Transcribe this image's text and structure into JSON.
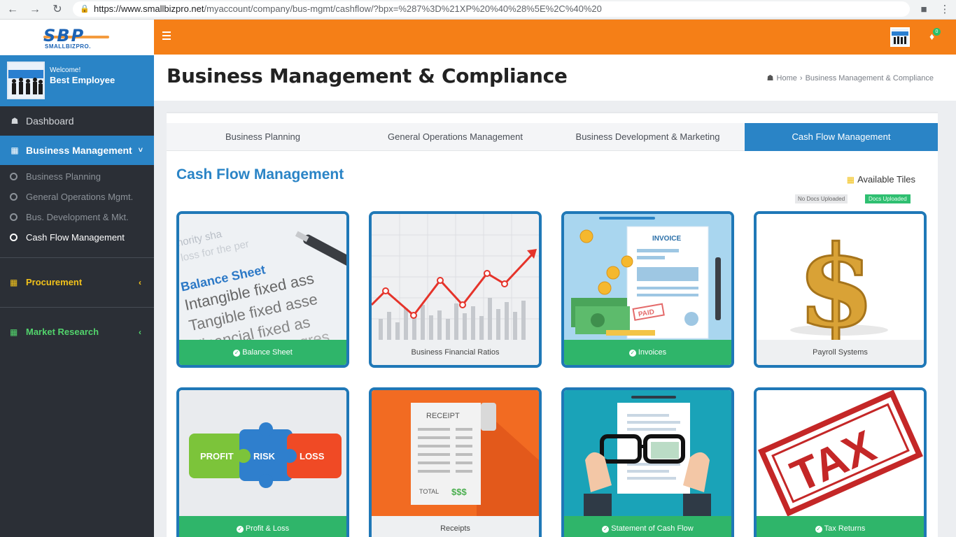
{
  "browser": {
    "url_host": "https://www.smallbizpro.net",
    "url_path": "/myaccount/company/bus-mgmt/cashflow/?bpx=%287%3D%21XP%20%40%28%5E%2C%40%20"
  },
  "logo": {
    "mark": "SBP",
    "subtext": "SMALLBIZPRO."
  },
  "user": {
    "welcome": "Welcome!",
    "name": "Best Employee"
  },
  "sidebar": {
    "dashboard": "Dashboard",
    "business_management": "Business Management",
    "sub_items": [
      {
        "label": "Business Planning"
      },
      {
        "label": "General Operations Mgmt."
      },
      {
        "label": "Bus. Development & Mkt."
      },
      {
        "label": "Cash Flow Management"
      }
    ],
    "procurement": "Procurement",
    "market_research": "Market Research"
  },
  "header": {
    "title": "Business Management & Compliance",
    "breadcrumb_home": "Home",
    "breadcrumb_current": "Business Management & Compliance"
  },
  "tabs": [
    {
      "label": "Business Planning"
    },
    {
      "label": "General Operations Management"
    },
    {
      "label": "Business Development & Marketing"
    },
    {
      "label": "Cash Flow Management",
      "active": true
    }
  ],
  "section": {
    "title": "Cash Flow Management",
    "available_tiles": "Available Tiles",
    "legend_no_docs": "No Docs Uploaded",
    "legend_docs": "Docs Uploaded"
  },
  "tiles": [
    {
      "label": "Balance Sheet",
      "uploaded": true
    },
    {
      "label": "Business Financial Ratios",
      "uploaded": false
    },
    {
      "label": "Invoices",
      "uploaded": true
    },
    {
      "label": "Payroll Systems",
      "uploaded": false
    },
    {
      "label": "Profit & Loss",
      "uploaded": true
    },
    {
      "label": "Receipts",
      "uploaded": false
    },
    {
      "label": "Statement of Cash Flow",
      "uploaded": true
    },
    {
      "label": "Tax Returns",
      "uploaded": true
    }
  ],
  "tile_art": {
    "balance_sheet": [
      "minority sha",
      "et loss for the per",
      "Balance Sheet",
      "Intangible fixed ass",
      "Tangible fixed asse",
      "Financial fixed as",
      "progres"
    ],
    "invoice": [
      "INVOICE",
      "PAID"
    ],
    "puzzle": [
      "PROFIT",
      "RISK",
      "LOSS"
    ],
    "receipt": [
      "RECEIPT",
      "TOTAL",
      "$$$"
    ],
    "tax": "TAX"
  },
  "colors": {
    "primary": "#2a84c6",
    "topbar": "#f57f17",
    "sidebar": "#2b2f36",
    "uploaded": "#2fb56a",
    "procurement": "#f2c21b",
    "market_research": "#52d36c"
  }
}
